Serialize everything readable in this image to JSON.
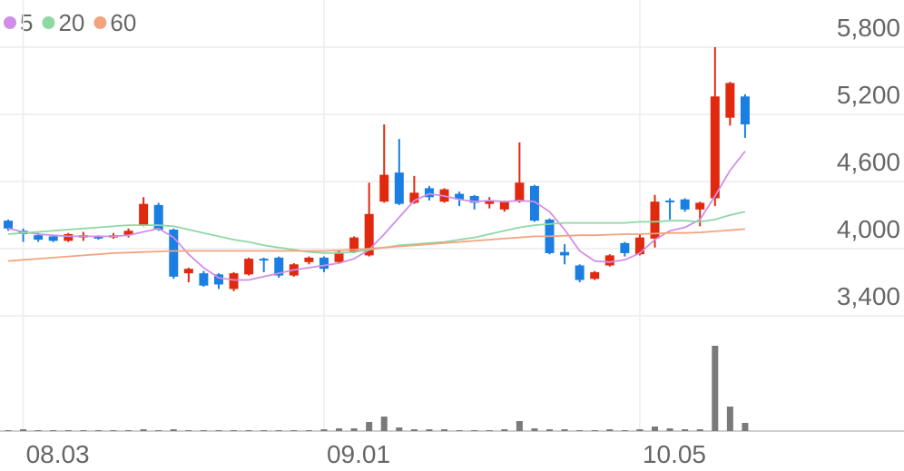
{
  "chart_data": {
    "type": "candlestick",
    "categories": [
      null,
      "08.03",
      null,
      null,
      null,
      null,
      null,
      null,
      null,
      null,
      null,
      null,
      null,
      null,
      null,
      null,
      null,
      null,
      null,
      null,
      null,
      "09.01",
      null,
      null,
      null,
      null,
      null,
      null,
      null,
      null,
      null,
      null,
      null,
      null,
      null,
      null,
      null,
      null,
      null,
      null,
      null,
      null,
      "10.05",
      null,
      null,
      null,
      null,
      null,
      null,
      null
    ],
    "open": [
      4250,
      4160,
      4120,
      4110,
      4070,
      4100,
      4110,
      4100,
      4120,
      4210,
      4390,
      4170,
      3780,
      3780,
      3770,
      3640,
      3770,
      3910,
      3920,
      3760,
      3880,
      3920,
      3880,
      3970,
      3940,
      4420,
      4680,
      4410,
      4540,
      4420,
      4490,
      4470,
      4400,
      4350,
      4420,
      4560,
      4260,
      3970,
      3850,
      3730,
      3850,
      4050,
      3950,
      4090,
      4430,
      4440,
      4350,
      4450,
      5170,
      5360
    ],
    "high": [
      4260,
      4180,
      4140,
      4120,
      4140,
      4150,
      4120,
      4140,
      4180,
      4460,
      4410,
      4180,
      3830,
      3800,
      3780,
      3790,
      3920,
      3920,
      3930,
      3870,
      3930,
      3930,
      3980,
      4110,
      4590,
      5110,
      4980,
      4650,
      4560,
      4540,
      4510,
      4480,
      4460,
      4430,
      4950,
      4570,
      4270,
      4040,
      3860,
      3800,
      3950,
      4060,
      4130,
      4480,
      4450,
      4450,
      4420,
      5800,
      5490,
      5380
    ],
    "low": [
      4160,
      4060,
      4060,
      4060,
      4060,
      4070,
      4080,
      4090,
      4100,
      4200,
      4160,
      3730,
      3700,
      3660,
      3640,
      3620,
      3760,
      3790,
      3740,
      3750,
      3860,
      3790,
      3870,
      3960,
      3930,
      4410,
      4390,
      4400,
      4430,
      4410,
      4380,
      4350,
      4360,
      4330,
      4410,
      4240,
      3950,
      3860,
      3700,
      3720,
      3840,
      3930,
      3940,
      4010,
      4260,
      4330,
      4200,
      4380,
      5100,
      4990
    ],
    "close": [
      4180,
      4130,
      4080,
      4070,
      4130,
      4120,
      4090,
      4120,
      4160,
      4400,
      4170,
      3750,
      3820,
      3670,
      3680,
      3780,
      3910,
      3900,
      3760,
      3860,
      3920,
      3820,
      3970,
      4100,
      4310,
      4660,
      4400,
      4500,
      4460,
      4530,
      4440,
      4410,
      4430,
      4420,
      4590,
      4250,
      3960,
      3940,
      3720,
      3790,
      3940,
      3960,
      4100,
      4420,
      4420,
      4350,
      4410,
      5360,
      5480,
      5110
    ],
    "up_color": "#e1290f",
    "down_color": "#1b7ee3",
    "series": [
      {
        "name": "5",
        "color": "#d08fe6",
        "values": [
          4180,
          4150,
          4130,
          4120,
          4110,
          4110,
          4110,
          4110,
          4120,
          4150,
          4180,
          4100,
          3950,
          3830,
          3740,
          3720,
          3720,
          3750,
          3780,
          3810,
          3830,
          3850,
          3870,
          3910,
          3990,
          4130,
          4280,
          4430,
          4490,
          4470,
          4440,
          4420,
          4430,
          4420,
          4430,
          4420,
          4330,
          4170,
          3980,
          3890,
          3880,
          3900,
          3960,
          4080,
          4160,
          4190,
          4260,
          4470,
          4700,
          4870
        ]
      },
      {
        "name": "20",
        "color": "#8fd8a4",
        "values": [
          4130,
          4140,
          4150,
          4160,
          4170,
          4180,
          4190,
          4200,
          4210,
          4210,
          4210,
          4200,
          4170,
          4140,
          4110,
          4080,
          4060,
          4030,
          4010,
          3990,
          3970,
          3960,
          3960,
          3970,
          3990,
          4010,
          4030,
          4040,
          4050,
          4060,
          4080,
          4100,
          4130,
          4160,
          4190,
          4210,
          4220,
          4230,
          4230,
          4230,
          4230,
          4230,
          4240,
          4240,
          4250,
          4250,
          4240,
          4260,
          4300,
          4330
        ]
      },
      {
        "name": "60",
        "color": "#f3a47f",
        "values": [
          3890,
          3900,
          3910,
          3920,
          3930,
          3940,
          3950,
          3960,
          3965,
          3970,
          3975,
          3980,
          3980,
          3980,
          3980,
          3980,
          3980,
          3980,
          3980,
          3980,
          3980,
          3980,
          3985,
          3990,
          4000,
          4010,
          4020,
          4030,
          4040,
          4050,
          4060,
          4070,
          4080,
          4090,
          4100,
          4110,
          4110,
          4115,
          4120,
          4120,
          4125,
          4130,
          4130,
          4135,
          4140,
          4140,
          4145,
          4155,
          4165,
          4175
        ]
      }
    ],
    "volumes": [
      1,
      2,
      1,
      1,
      1,
      1,
      1,
      1,
      1,
      2,
      1,
      2,
      1,
      1,
      1,
      1,
      1,
      1,
      1,
      1,
      1,
      2,
      3,
      3,
      10,
      16,
      4,
      2,
      2,
      2,
      1,
      1,
      1,
      2,
      11,
      3,
      2,
      2,
      1,
      1,
      2,
      1,
      2,
      5,
      3,
      2,
      2,
      94,
      27,
      9
    ],
    "volume_color": "#7a7a7a",
    "ylim": [
      3400,
      5800
    ],
    "yticks": [
      {
        "value": 3400,
        "label": "3,400"
      },
      {
        "value": 4000,
        "label": "4,000"
      },
      {
        "value": 4600,
        "label": "4,600"
      },
      {
        "value": 5200,
        "label": "5,200"
      },
      {
        "value": 5800,
        "label": "5,800"
      }
    ],
    "grid": true
  }
}
